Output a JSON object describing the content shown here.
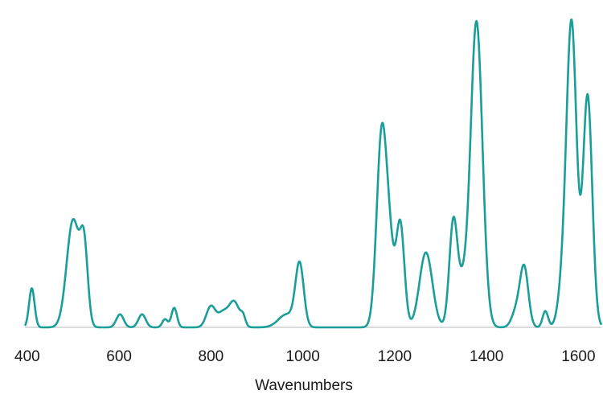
{
  "chart_data": {
    "type": "line",
    "title": "",
    "xlabel": "Wavenumbers",
    "ylabel": "",
    "xlim": [
      395,
      1650
    ],
    "ylim": [
      0,
      1.0
    ],
    "xticks": [
      400,
      600,
      800,
      1000,
      1200,
      1400,
      1600
    ],
    "grid": false,
    "legend": "none",
    "line_color": "#1a9e9a",
    "axis_color": "#cfcfcf",
    "series": [
      {
        "peaks": [
          {
            "x": 410,
            "h": 0.12,
            "w": 6
          },
          {
            "x": 500,
            "h": 0.33,
            "w": 14
          },
          {
            "x": 524,
            "h": 0.22,
            "w": 8
          },
          {
            "x": 602,
            "h": 0.04,
            "w": 8
          },
          {
            "x": 650,
            "h": 0.04,
            "w": 8
          },
          {
            "x": 700,
            "h": 0.025,
            "w": 6
          },
          {
            "x": 720,
            "h": 0.06,
            "w": 6
          },
          {
            "x": 800,
            "h": 0.065,
            "w": 10
          },
          {
            "x": 825,
            "h": 0.04,
            "w": 10
          },
          {
            "x": 850,
            "h": 0.08,
            "w": 12
          },
          {
            "x": 870,
            "h": 0.025,
            "w": 5
          },
          {
            "x": 965,
            "h": 0.04,
            "w": 18
          },
          {
            "x": 993,
            "h": 0.19,
            "w": 9
          },
          {
            "x": 1172,
            "h": 0.6,
            "w": 11
          },
          {
            "x": 1190,
            "h": 0.18,
            "w": 9
          },
          {
            "x": 1212,
            "h": 0.32,
            "w": 9
          },
          {
            "x": 1268,
            "h": 0.23,
            "w": 14
          },
          {
            "x": 1328,
            "h": 0.33,
            "w": 9
          },
          {
            "x": 1348,
            "h": 0.1,
            "w": 9
          },
          {
            "x": 1378,
            "h": 0.94,
            "w": 13
          },
          {
            "x": 1465,
            "h": 0.05,
            "w": 10
          },
          {
            "x": 1482,
            "h": 0.18,
            "w": 9
          },
          {
            "x": 1528,
            "h": 0.05,
            "w": 6
          },
          {
            "x": 1565,
            "h": 0.1,
            "w": 10
          },
          {
            "x": 1585,
            "h": 0.93,
            "w": 11
          },
          {
            "x": 1620,
            "h": 0.71,
            "w": 10
          }
        ]
      }
    ]
  }
}
